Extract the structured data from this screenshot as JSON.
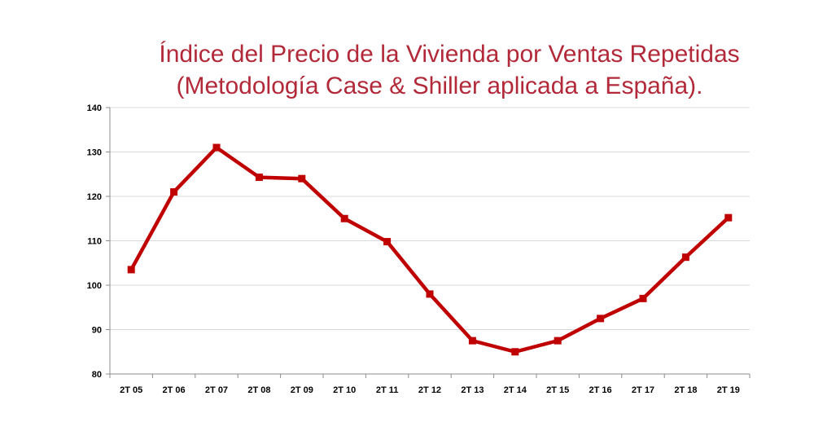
{
  "colors": {
    "title": "#b22a3a",
    "line": "#c00000",
    "grid": "#d9d9d9",
    "axis": "#8c8c8c"
  },
  "title_line1": "Índice del Precio de la Vivienda por Ventas Repetidas",
  "title_line2": "(Metodología Case & Shiller aplicada a España).",
  "chart_data": {
    "type": "line",
    "title": "Índice del Precio de la Vivienda por Ventas Repetidas (Metodología Case & Shiller aplicada a España).",
    "xlabel": "",
    "ylabel": "",
    "categories": [
      "2T 05",
      "2T 06",
      "2T 07",
      "2T 08",
      "2T 09",
      "2T 10",
      "2T 11",
      "2T 12",
      "2T 13",
      "2T 14",
      "2T 15",
      "2T 16",
      "2T 17",
      "2T 18",
      "2T 19"
    ],
    "series": [
      {
        "values": [
          103.5,
          121,
          131,
          124.3,
          124,
          115,
          109.8,
          98,
          87.5,
          85,
          87.5,
          92.5,
          97,
          106.3,
          115.2
        ]
      }
    ],
    "ylim": [
      80,
      140
    ],
    "yticks": [
      80,
      90,
      100,
      110,
      120,
      130,
      140
    ],
    "grid": true,
    "marker": "square",
    "legend": "none"
  }
}
